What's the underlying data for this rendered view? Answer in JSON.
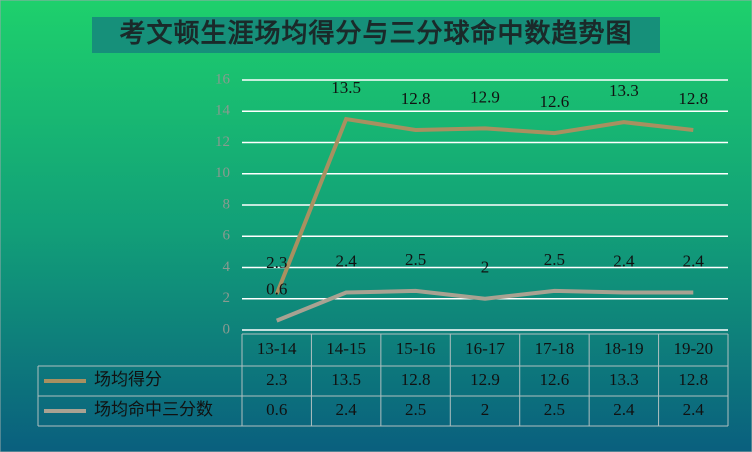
{
  "chart_data": {
    "type": "line",
    "title": "考文顿生涯场均得分与三分球命中数趋势图",
    "categories": [
      "13-14",
      "14-15",
      "15-16",
      "16-17",
      "17-18",
      "18-19",
      "19-20"
    ],
    "series": [
      {
        "name": "场均得分",
        "color": "#a89060",
        "values": [
          2.3,
          13.5,
          12.8,
          12.9,
          12.6,
          13.3,
          12.8
        ]
      },
      {
        "name": "场均命中三分数",
        "color": "#a8a292",
        "values": [
          0.6,
          2.4,
          2.5,
          2,
          2.5,
          2.4,
          2.4
        ]
      }
    ],
    "ylim": [
      0,
      16
    ],
    "yticks": [
      0,
      2,
      4,
      6,
      8,
      10,
      12,
      14,
      16
    ],
    "grid": true
  }
}
